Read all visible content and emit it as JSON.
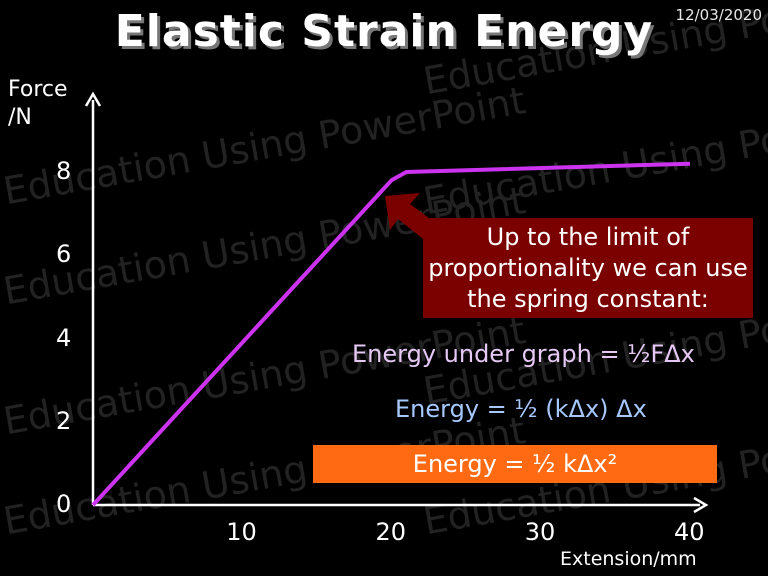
{
  "slide": {
    "title": "Elastic Strain Energy",
    "date": "12/03/2020",
    "watermark": "Education Using PowerPoint"
  },
  "chart_data": {
    "type": "line",
    "ylabel": "Force /N",
    "xlabel": "Extension/mm",
    "xlim": [
      0,
      40
    ],
    "ylim": [
      0,
      8
    ],
    "x_ticks": [
      "10",
      "20",
      "30",
      "40"
    ],
    "y_ticks": [
      "0",
      "2",
      "4",
      "6",
      "8"
    ],
    "series": [
      {
        "points": [
          [
            0,
            0
          ],
          [
            20,
            7.8
          ],
          [
            21,
            8.0
          ],
          [
            40,
            8.2
          ]
        ]
      }
    ],
    "colors": {
      "line": "#cc33ee",
      "axes": "#ffffff",
      "arrow": "#7b0000"
    }
  },
  "annotations": {
    "callout": "Up to the limit of proportionality we can use the spring constant:",
    "eq1": "Energy under graph = ½FΔx",
    "eq2": "Energy = ½ (kΔx) Δx",
    "eq3": "Energy = ½ kΔx²"
  }
}
